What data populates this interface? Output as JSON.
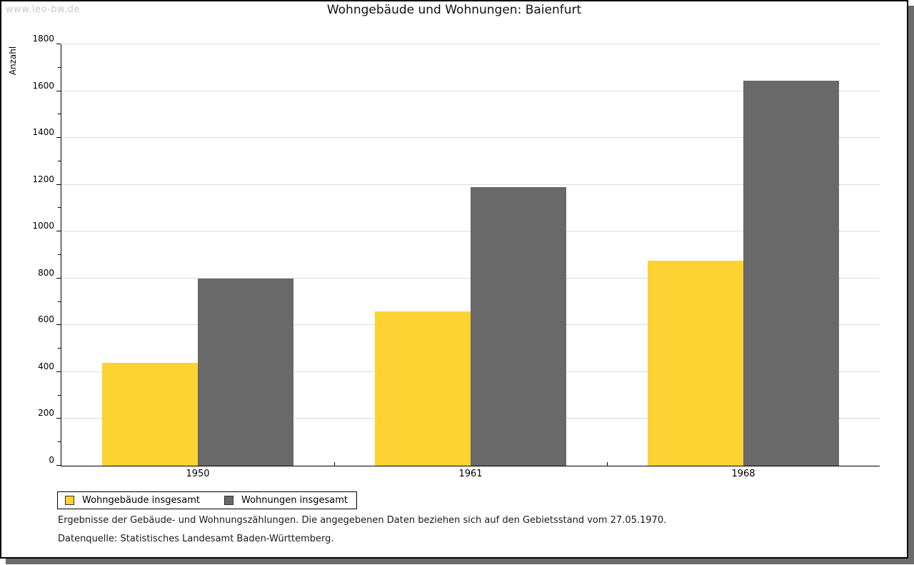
{
  "page": {
    "watermark": "www.leo-bw.de",
    "title": "Wohngebäude und Wohnungen: Baienfurt"
  },
  "chart_data": {
    "type": "bar",
    "title": "Wohngebäude und Wohnungen: Baienfurt",
    "categories": [
      "1950",
      "1961",
      "1968"
    ],
    "series": [
      {
        "name": "Wohngebäude insgesamt",
        "color": "#FCD332",
        "values": [
          440,
          658,
          877
        ]
      },
      {
        "name": "Wohnungen insgesamt",
        "color": "#696969",
        "values": [
          798,
          1190,
          1643
        ]
      }
    ],
    "xlabel": "",
    "ylabel": "Anzahl",
    "ylim": [
      0,
      1800
    ],
    "ytick_step": 200,
    "yminor_step": 100,
    "grid": true,
    "gridline_color": "#DDDDDD",
    "legend_position": "bottom-left"
  },
  "footer": {
    "line1": "Ergebnisse der Gebäude- und Wohnungszählungen. Die angegebenen Daten beziehen sich auf den Gebietsstand vom 27.05.1970.",
    "line2": "Datenquelle: Statistisches Landesamt Baden-Württemberg."
  },
  "colors": {
    "frame_shadow": "#6B6B6B",
    "watermark_text": "#C8C8C8",
    "axis": "#000000"
  }
}
